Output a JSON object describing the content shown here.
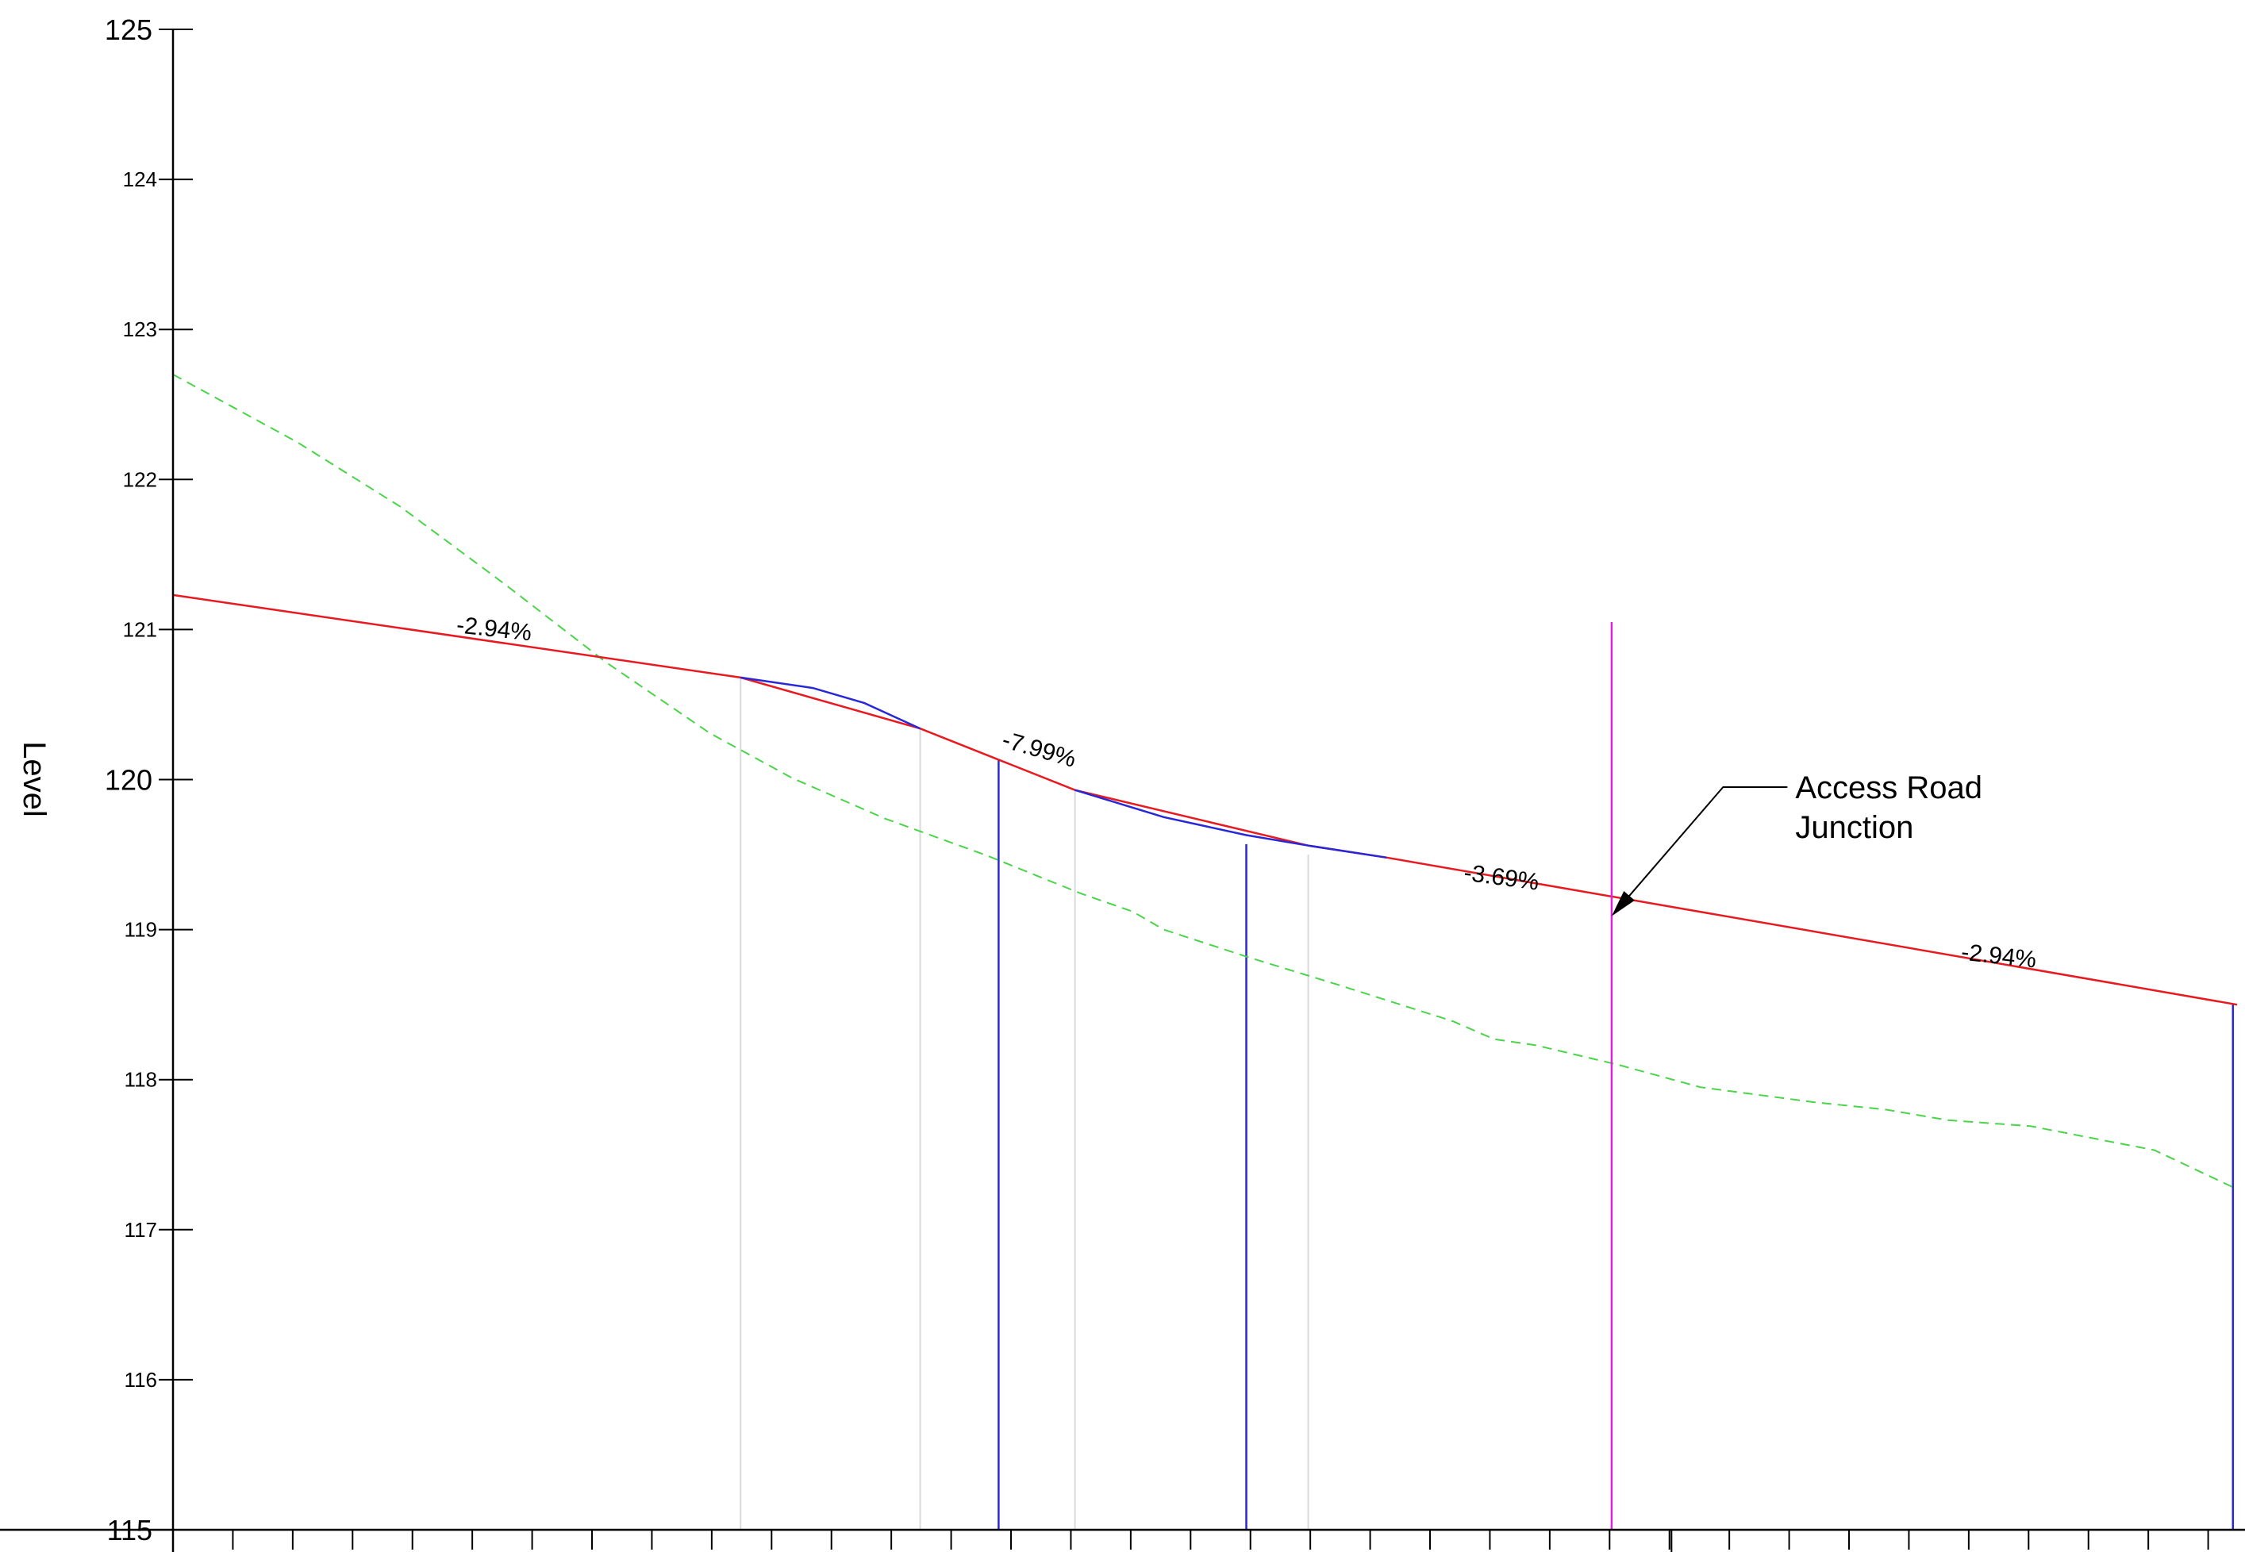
{
  "chart_data": {
    "type": "line",
    "ylabel": "Level",
    "xlabel": "",
    "ylim": [
      115,
      125
    ],
    "xlim": [
      0,
      1000
    ],
    "grid": false,
    "y_ticks": [
      {
        "value": 125,
        "label": "125",
        "major": true
      },
      {
        "value": 124,
        "label": "124",
        "major": false
      },
      {
        "value": 123,
        "label": "123",
        "major": false
      },
      {
        "value": 122,
        "label": "122",
        "major": false
      },
      {
        "value": 121,
        "label": "121",
        "major": false
      },
      {
        "value": 120,
        "label": "120",
        "major": true
      },
      {
        "value": 119,
        "label": "119",
        "major": false
      },
      {
        "value": 118,
        "label": "118",
        "major": false
      },
      {
        "value": 117,
        "label": "117",
        "major": false
      },
      {
        "value": 116,
        "label": "116",
        "major": false
      },
      {
        "value": 115,
        "label": "115",
        "major": true
      }
    ],
    "x_minor_tick_step": 29,
    "x_major_ticks": [
      726
    ],
    "series": [
      {
        "kind": "design-grade",
        "color": "#e8191f",
        "points": [
          [
            0,
            121.23
          ],
          [
            275,
            120.68
          ],
          [
            362,
            120.34
          ],
          [
            437,
            119.93
          ],
          [
            550,
            119.56
          ],
          [
            588,
            119.48
          ],
          [
            1000,
            118.5
          ]
        ]
      },
      {
        "kind": "vertical-curve",
        "color": "#2828d8",
        "segments": [
          [
            [
              275,
              120.68
            ],
            [
              310,
              120.61
            ],
            [
              335,
              120.51
            ],
            [
              362,
              120.34
            ]
          ],
          [
            [
              437,
              119.93
            ],
            [
              480,
              119.75
            ],
            [
              520,
              119.63
            ],
            [
              550,
              119.56
            ],
            [
              588,
              119.48
            ]
          ]
        ]
      },
      {
        "kind": "existing-ground",
        "color": "#49d449",
        "points": [
          [
            0,
            122.7
          ],
          [
            60,
            122.25
          ],
          [
            110,
            121.82
          ],
          [
            160,
            121.31
          ],
          [
            210,
            120.78
          ],
          [
            260,
            120.31
          ],
          [
            300,
            120.01
          ],
          [
            345,
            119.74
          ],
          [
            395,
            119.49
          ],
          [
            440,
            119.24
          ],
          [
            465,
            119.12
          ],
          [
            480,
            119.0
          ],
          [
            520,
            118.82
          ],
          [
            565,
            118.63
          ],
          [
            620,
            118.39
          ],
          [
            640,
            118.27
          ],
          [
            660,
            118.23
          ],
          [
            700,
            118.1
          ],
          [
            740,
            117.95
          ],
          [
            795,
            117.85
          ],
          [
            830,
            117.8
          ],
          [
            860,
            117.73
          ],
          [
            900,
            117.69
          ],
          [
            960,
            117.53
          ],
          [
            1000,
            117.27
          ]
        ]
      }
    ],
    "stations": [
      {
        "x": 275,
        "y_top": 120.68,
        "color": "#d9d9d9"
      },
      {
        "x": 362,
        "y_top": 120.34,
        "color": "#d9d9d9"
      },
      {
        "x": 400,
        "y_top": 120.13,
        "color": "#2828d8"
      },
      {
        "x": 437,
        "y_top": 119.93,
        "color": "#d9d9d9"
      },
      {
        "x": 520,
        "y_top": 119.57,
        "color": "#2828d8"
      },
      {
        "x": 550,
        "y_top": 119.5,
        "color": "#d9d9d9"
      },
      {
        "x": 998,
        "y_top": 118.5,
        "color": "#2828d8"
      }
    ],
    "junction_line": {
      "x": 697,
      "y_top": 121.05,
      "color": "#dd22dd"
    },
    "grade_labels": [
      {
        "text": "-2.94%",
        "x": 137,
        "y": 120.98,
        "angle": 6.2
      },
      {
        "text": "-7.99%",
        "x": 401,
        "y": 120.22,
        "angle": 16
      },
      {
        "text": "-3.69%",
        "x": 625,
        "y": 119.33,
        "angle": 7.6
      },
      {
        "text": "-2.94%",
        "x": 866,
        "y": 118.8,
        "angle": 6.2
      }
    ],
    "annotations": [
      {
        "lines": [
          "Access Road",
          "Junction"
        ],
        "point": [
          697,
          119.09
        ],
        "elbow": [
          751,
          119.95
        ],
        "text_anchor": [
          786,
          119.95
        ]
      }
    ]
  }
}
